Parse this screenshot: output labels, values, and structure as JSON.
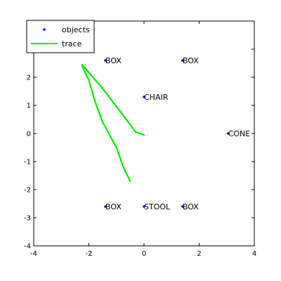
{
  "chart_data": {
    "type": "scatter",
    "title": "",
    "xlabel": "",
    "ylabel": "",
    "xlim": [
      -4,
      4
    ],
    "ylim": [
      -4,
      4
    ],
    "x_ticks": [
      -4,
      -2,
      0,
      2,
      4
    ],
    "y_ticks": [
      -4,
      -3,
      -2,
      -1,
      0,
      1,
      2,
      3
    ],
    "x_tick_labels": [
      "-4",
      "-2",
      "0",
      "2",
      "4"
    ],
    "y_tick_labels": [
      "-4",
      "-3",
      "-2",
      "-1",
      "0",
      "1",
      "2",
      "3"
    ],
    "grid": false,
    "legend_position": "top-left",
    "legend": [
      {
        "label": "objects",
        "marker": "point",
        "color": "#0000ff"
      },
      {
        "label": "trace",
        "marker": "line",
        "color": "#00ee00"
      }
    ],
    "series": [
      {
        "name": "objects",
        "kind": "scatter",
        "color": "#0000ff",
        "points": [
          {
            "x": -1.4,
            "y": 2.6,
            "label": "BOX"
          },
          {
            "x": 1.4,
            "y": 2.6,
            "label": "BOX"
          },
          {
            "x": 0.0,
            "y": 1.3,
            "label": "CHAIR"
          },
          {
            "x": 3.05,
            "y": 0.0,
            "label": "CONE"
          },
          {
            "x": -1.4,
            "y": -2.6,
            "label": "BOX"
          },
          {
            "x": 0.0,
            "y": -2.6,
            "label": "STOOL"
          },
          {
            "x": 1.4,
            "y": -2.6,
            "label": "BOX"
          }
        ]
      },
      {
        "name": "trace",
        "kind": "line",
        "color": "#00ee00",
        "points": [
          {
            "x": 0.0,
            "y": -0.05
          },
          {
            "x": -0.3,
            "y": 0.05
          },
          {
            "x": -0.8,
            "y": 0.7
          },
          {
            "x": -1.5,
            "y": 1.6
          },
          {
            "x": -2.25,
            "y": 2.45
          },
          {
            "x": -2.2,
            "y": 2.3
          },
          {
            "x": -2.0,
            "y": 1.9
          },
          {
            "x": -1.8,
            "y": 1.2
          },
          {
            "x": -1.5,
            "y": 0.4
          },
          {
            "x": -1.0,
            "y": -0.5
          },
          {
            "x": -0.75,
            "y": -1.2
          },
          {
            "x": -0.5,
            "y": -1.7
          }
        ]
      }
    ]
  }
}
